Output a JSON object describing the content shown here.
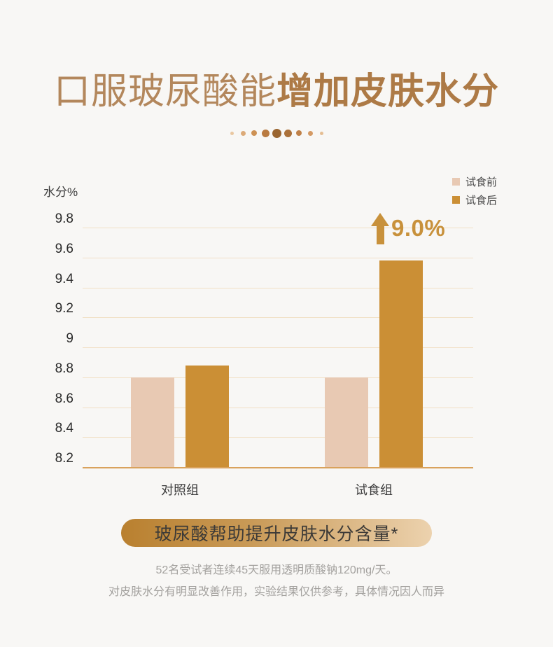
{
  "title": {
    "regular": "口服玻尿酸能",
    "bold": "增加皮肤水分",
    "color": "#b3875c",
    "bold_color": "#ad7a46"
  },
  "pagination": {
    "dots": [
      {
        "size": 5,
        "color": "#e9c7a0"
      },
      {
        "size": 7,
        "color": "#dcaa78"
      },
      {
        "size": 8,
        "color": "#cd9154"
      },
      {
        "size": 11,
        "color": "#b97a40"
      },
      {
        "size": 13,
        "color": "#9a6530"
      },
      {
        "size": 11,
        "color": "#ab713a"
      },
      {
        "size": 8,
        "color": "#c08148"
      },
      {
        "size": 7,
        "color": "#d49a64"
      },
      {
        "size": 5,
        "color": "#e5bd92"
      }
    ]
  },
  "chart_data": {
    "type": "bar",
    "title": "",
    "xlabel": "",
    "ylabel": "水分%",
    "categories": [
      "对照组",
      "试食组"
    ],
    "series": [
      {
        "name": "试食前",
        "color": "#e8c9b3",
        "values": [
          8.8,
          8.8
        ]
      },
      {
        "name": "试食后",
        "color": "#cb8f35",
        "values": [
          8.88,
          9.58
        ]
      }
    ],
    "ylim": [
      8.2,
      9.8
    ],
    "yticks": [
      9.8,
      9.6,
      9.4,
      9.2,
      9,
      8.8,
      8.6,
      8.4,
      8.2
    ],
    "grid": true,
    "gridline_color": "#f1e0c6",
    "baseline_color": "#d9a25c",
    "legend_position": "top-right",
    "annotation": {
      "text": "9.0%",
      "icon": "up-arrow",
      "color": "#c8913b",
      "applies_to": "试食组 试食后"
    }
  },
  "banner": {
    "text": "玻尿酸帮助提升皮肤水分含量*",
    "gradient_left": "#b9802f",
    "gradient_right": "#ecd2ae",
    "text_color": "#3c3a37"
  },
  "footnote": {
    "line1": "52名受试者连续45天服用透明质酸钠120mg/天。",
    "line2": "对皮肤水分有明显改善作用，实验结果仅供参考，具体情况因人而异",
    "color": "#a3a19e"
  },
  "colors": {
    "background": "#f8f7f5"
  }
}
